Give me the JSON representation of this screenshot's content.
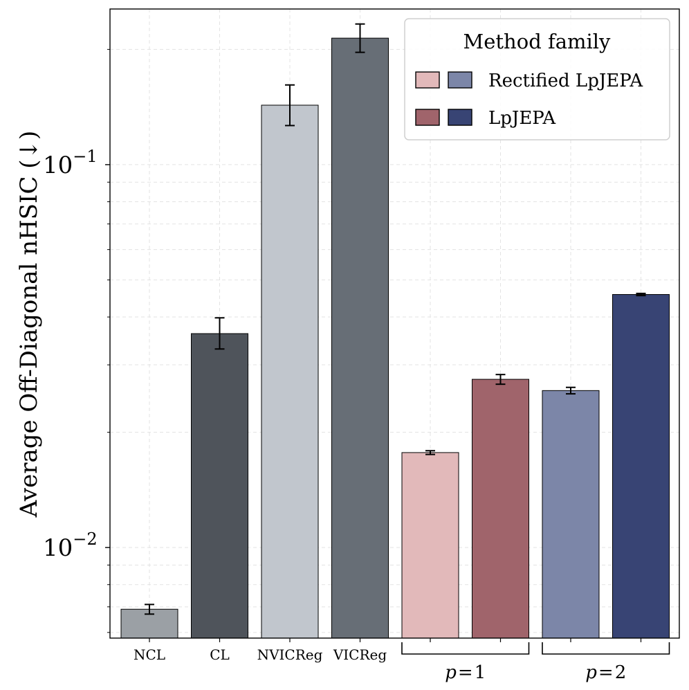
{
  "chart_data": {
    "type": "bar",
    "yscale": "log",
    "ylim": [
      0.0058,
      0.255
    ],
    "ylabel": "Average Off-Diagonal nHSIC (↓)",
    "ytick_labels": [
      {
        "value": 0.1,
        "base": "10",
        "exp": "−1"
      },
      {
        "value": 0.01,
        "base": "10",
        "exp": "−2"
      }
    ],
    "grid": true,
    "bars": [
      {
        "name": "ncl",
        "label": "NCL",
        "value": 0.0069,
        "err_low": 0.0067,
        "err_high": 0.0071,
        "color": "#9ba0a5"
      },
      {
        "name": "cl",
        "label": "CL",
        "value": 0.0362,
        "err_low": 0.033,
        "err_high": 0.0398,
        "color": "#4f545b"
      },
      {
        "name": "nvicreg",
        "label": "NVICReg",
        "value": 0.143,
        "err_low": 0.1265,
        "err_high": 0.1615,
        "color": "#c1c6cd"
      },
      {
        "name": "vicreg",
        "label": "VICReg",
        "value": 0.214,
        "err_low": 0.1965,
        "err_high": 0.233,
        "color": "#676e76"
      },
      {
        "name": "rectified-p1",
        "label": "",
        "value": 0.0177,
        "err_low": 0.0175,
        "err_high": 0.0179,
        "color": "#e2b9ba"
      },
      {
        "name": "lpjepa-p1",
        "label": "",
        "value": 0.0275,
        "err_low": 0.0267,
        "err_high": 0.0283,
        "color": "#a0646b"
      },
      {
        "name": "rectified-p2",
        "label": "",
        "value": 0.0257,
        "err_low": 0.0252,
        "err_high": 0.0262,
        "color": "#7c86a8"
      },
      {
        "name": "lpjepa-p2",
        "label": "",
        "value": 0.0458,
        "err_low": 0.0455,
        "err_high": 0.0461,
        "color": "#384474"
      }
    ],
    "groups": [
      {
        "label": "p = 1",
        "var": "p",
        "op": "=",
        "num": "1",
        "bars": [
          4,
          5
        ]
      },
      {
        "label": "p = 2",
        "var": "p",
        "op": "=",
        "num": "2",
        "bars": [
          6,
          7
        ]
      }
    ],
    "legend": {
      "title": "Method family",
      "location": "top-right",
      "entries": [
        {
          "label": "Rectified LpJEPA",
          "colors": [
            "#e2b9ba",
            "#7c86a8"
          ]
        },
        {
          "label": "LpJEPA",
          "colors": [
            "#a0646b",
            "#384474"
          ]
        }
      ]
    }
  }
}
